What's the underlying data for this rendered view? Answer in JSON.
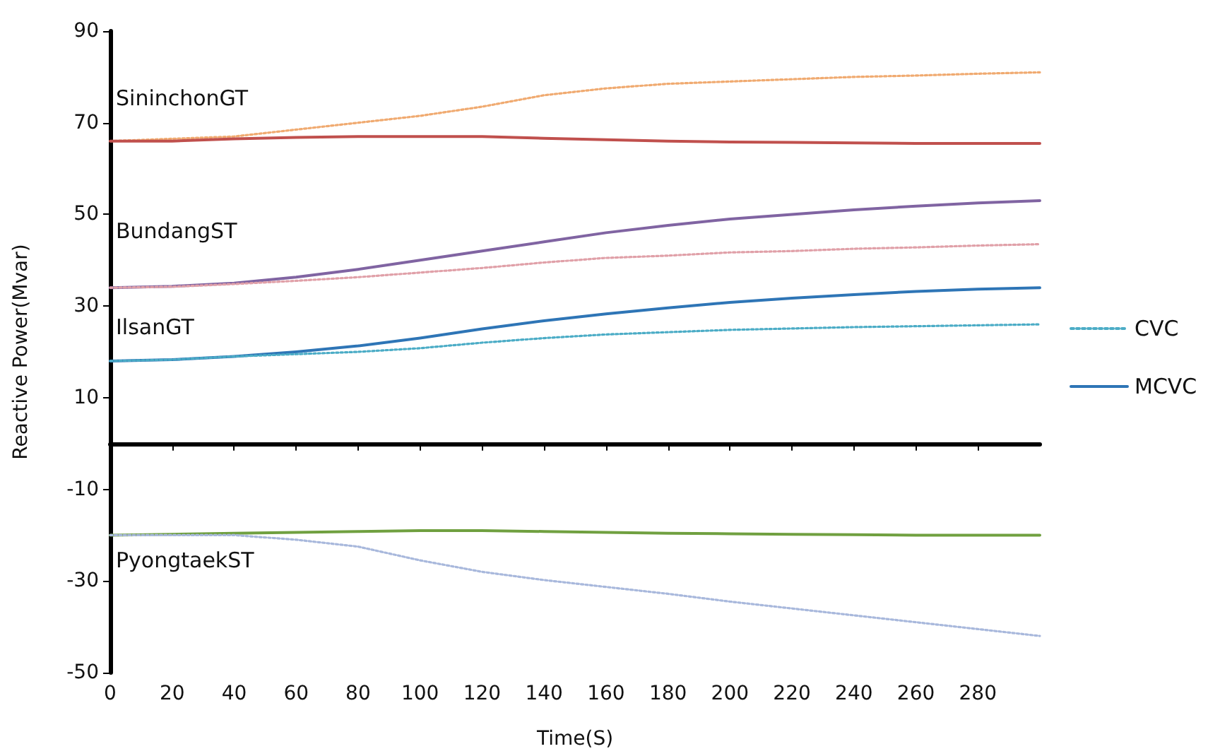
{
  "chart_data": {
    "type": "line",
    "xlabel": "Time(S)",
    "ylabel": "Reactive Power(Mvar)",
    "xlim": [
      0,
      300
    ],
    "xticks": [
      0,
      20,
      40,
      60,
      80,
      100,
      120,
      140,
      160,
      180,
      200,
      220,
      240,
      260,
      280
    ],
    "ylim": [
      -50,
      90
    ],
    "yticks": [
      -50,
      -30,
      -10,
      10,
      30,
      50,
      70,
      90
    ],
    "grid": false,
    "legend": "right",
    "marker": "none",
    "x": [
      0,
      20,
      40,
      60,
      80,
      100,
      120,
      140,
      160,
      180,
      200,
      220,
      240,
      260,
      280,
      300
    ],
    "series": [
      {
        "color": "#f0aa70",
        "line_style": "dotted",
        "values": [
          66,
          66.5,
          67,
          68.5,
          70,
          71.5,
          73.5,
          76,
          77.5,
          78.5,
          79,
          79.5,
          80,
          80.3,
          80.7,
          81
        ]
      },
      {
        "color": "#c0504d",
        "line_style": "solid",
        "values": [
          66,
          66,
          66.5,
          66.8,
          67,
          67,
          67,
          66.6,
          66.3,
          66,
          65.8,
          65.7,
          65.6,
          65.5,
          65.5,
          65.5
        ]
      },
      {
        "color": "#8064a2",
        "line_style": "solid",
        "values": [
          34,
          34.3,
          35,
          36.3,
          38,
          40,
          42,
          44,
          46,
          47.6,
          49,
          50,
          51,
          51.8,
          52.5,
          53
        ]
      },
      {
        "color": "#e0a0a8",
        "line_style": "dotted",
        "values": [
          34,
          34.2,
          34.8,
          35.5,
          36.3,
          37.3,
          38.3,
          39.5,
          40.5,
          41,
          41.7,
          42,
          42.5,
          42.8,
          43.2,
          43.5
        ]
      },
      {
        "name": "MCVC",
        "color": "#2e75b6",
        "line_style": "solid",
        "values": [
          18,
          18.3,
          19,
          20,
          21.3,
          23,
          25,
          26.8,
          28.3,
          29.6,
          30.8,
          31.7,
          32.5,
          33.2,
          33.7,
          34
        ]
      },
      {
        "name": "CVC",
        "color": "#4bacc6",
        "line_style": "dotted",
        "values": [
          18,
          18.3,
          19,
          19.5,
          20,
          20.8,
          22,
          23,
          23.8,
          24.3,
          24.8,
          25.1,
          25.4,
          25.6,
          25.8,
          26
        ]
      },
      {
        "color": "#70a040",
        "line_style": "solid",
        "values": [
          -20,
          -19.8,
          -19.6,
          -19.4,
          -19.2,
          -19,
          -19,
          -19.2,
          -19.4,
          -19.6,
          -19.7,
          -19.8,
          -19.9,
          -20,
          -20,
          -20
        ]
      },
      {
        "color": "#a8b8dc",
        "line_style": "dotted",
        "values": [
          -20,
          -20,
          -20,
          -21,
          -22.5,
          -25.5,
          -28,
          -29.8,
          -31.3,
          -32.8,
          -34.5,
          -36,
          -37.5,
          -39,
          -40.5,
          -42
        ]
      }
    ],
    "annotations": [
      "SininchonGT",
      "BundangST",
      "IlsanGT",
      "PyongtaekST"
    ]
  }
}
